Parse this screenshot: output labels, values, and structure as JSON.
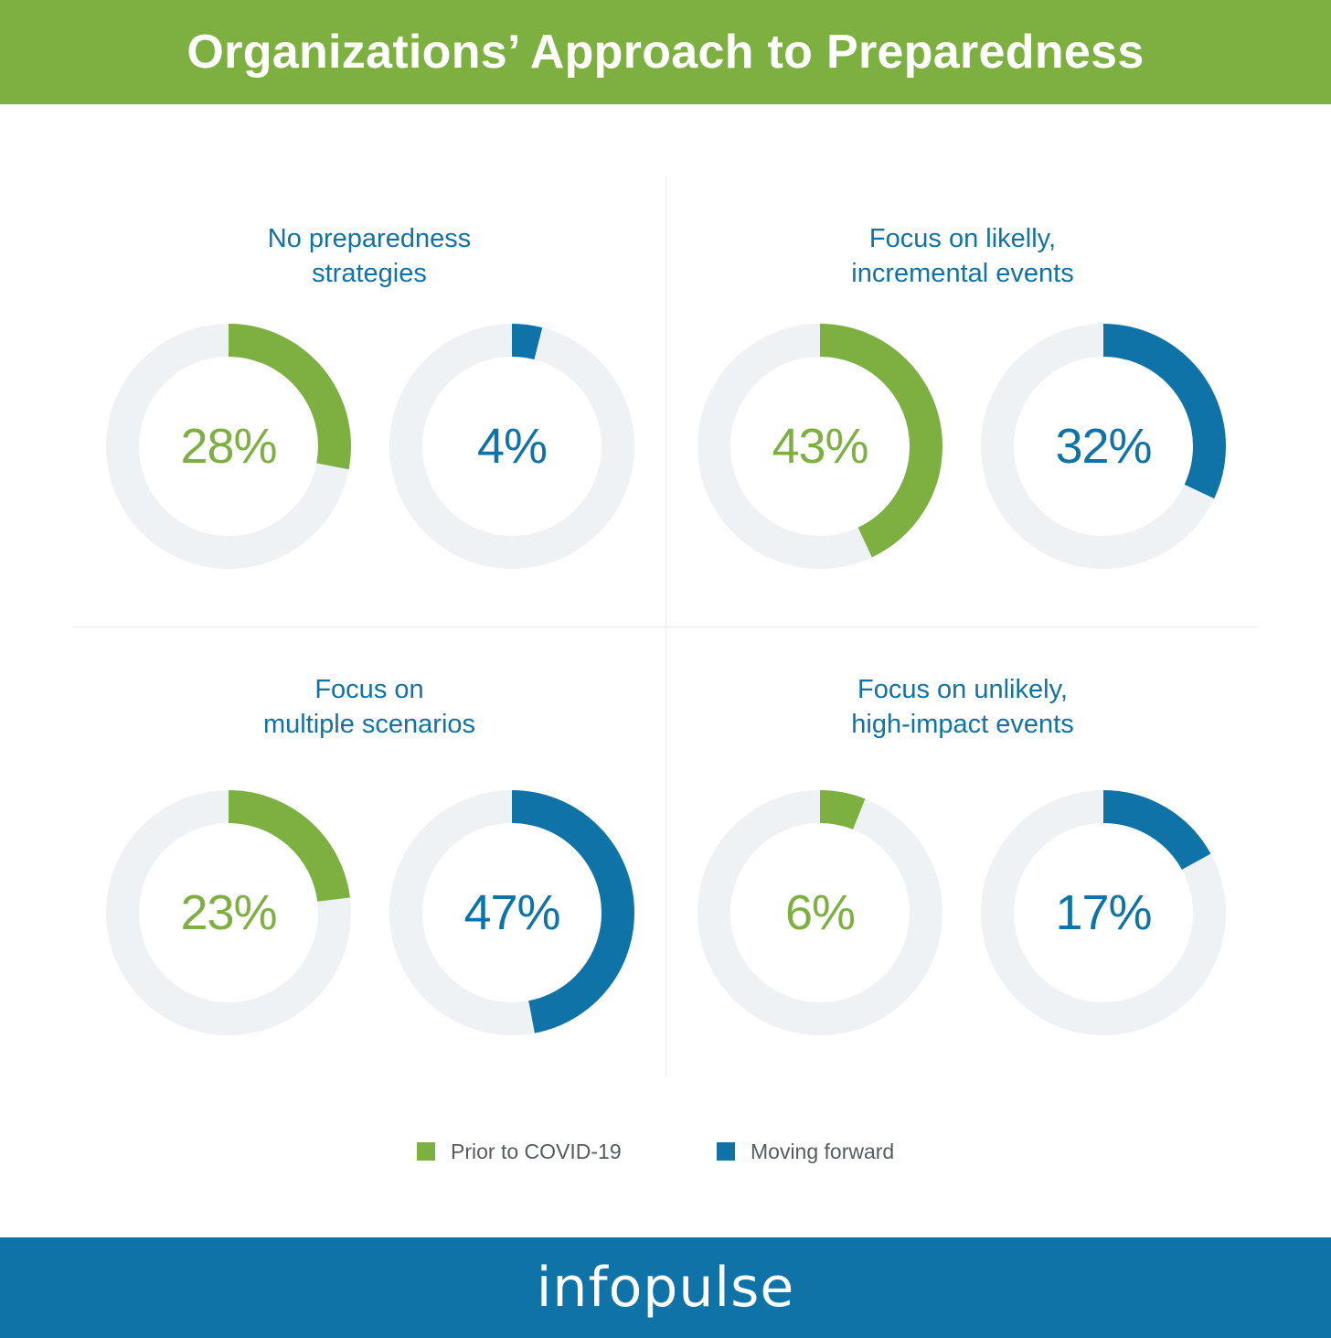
{
  "header": {
    "title": "Organizations’ Approach to Preparedness"
  },
  "legend": {
    "items": [
      {
        "label": "Prior to COVID-19",
        "color": "#7db041"
      },
      {
        "label": "Moving forward",
        "color": "#0f73a8"
      }
    ]
  },
  "colors": {
    "track": "#eef2f5",
    "prior": "#7db041",
    "forward": "#0f73a8"
  },
  "chart_data": [
    {
      "type": "pie",
      "title": "No preparedness\nstrategies",
      "series": [
        {
          "name": "Prior to COVID-19",
          "value": 28,
          "label": "28%"
        },
        {
          "name": "Moving forward",
          "value": 4,
          "label": "4%"
        }
      ]
    },
    {
      "type": "pie",
      "title": "Focus on likelly,\nincremental events",
      "series": [
        {
          "name": "Prior to COVID-19",
          "value": 43,
          "label": "43%"
        },
        {
          "name": "Moving forward",
          "value": 32,
          "label": "32%"
        }
      ]
    },
    {
      "type": "pie",
      "title": "Focus on\nmultiple scenarios",
      "series": [
        {
          "name": "Prior to COVID-19",
          "value": 23,
          "label": "23%"
        },
        {
          "name": "Moving forward",
          "value": 47,
          "label": "47%"
        }
      ]
    },
    {
      "type": "pie",
      "title": "Focus on unlikely,\nhigh-impact events",
      "series": [
        {
          "name": "Prior to COVID-19",
          "value": 6,
          "label": "6%"
        },
        {
          "name": "Moving forward",
          "value": 17,
          "label": "17%"
        }
      ]
    }
  ],
  "footer": {
    "logo": "infopulse"
  }
}
